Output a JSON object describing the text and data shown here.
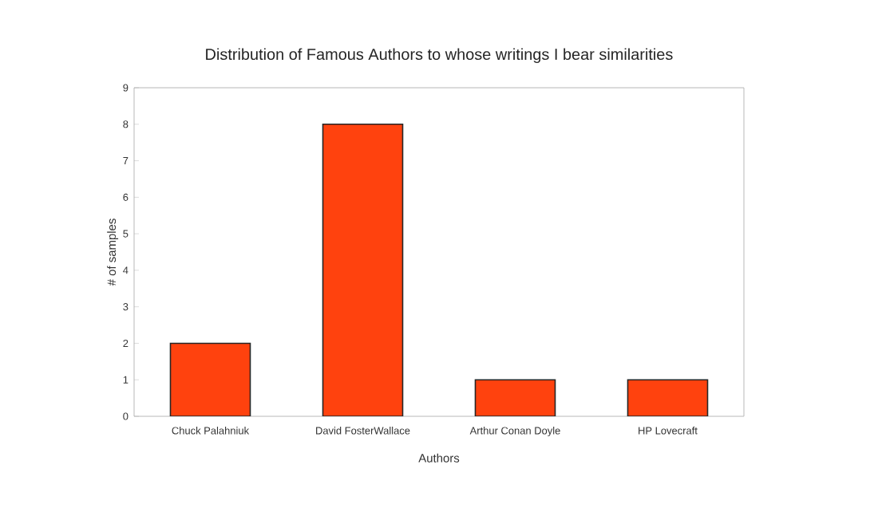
{
  "chart_data": {
    "type": "bar",
    "title": "Distribution of Famous Authors to whose writings I bear similarities",
    "xlabel": "Authors",
    "ylabel": "# of samples",
    "categories": [
      "Chuck Palahniuk",
      "David FosterWallace",
      "Arthur Conan Doyle",
      "HP Lovecraft"
    ],
    "values": [
      2,
      8,
      1,
      1
    ],
    "color": "#ff420e",
    "ylim": [
      0,
      9
    ],
    "yticks": [
      0,
      1,
      2,
      3,
      4,
      5,
      6,
      7,
      8,
      9
    ]
  }
}
